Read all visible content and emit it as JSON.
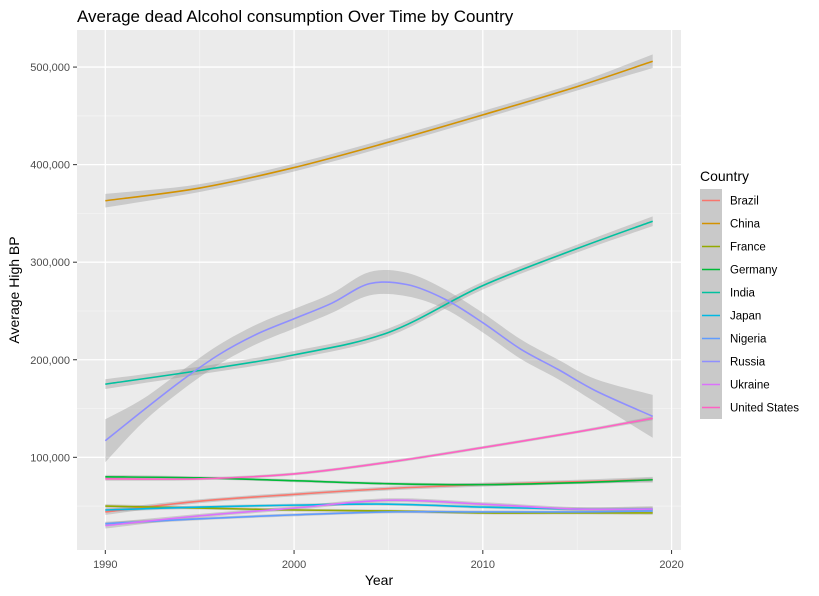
{
  "chart_data": {
    "type": "line",
    "title": "Average dead Alcohol consumption Over Time by Country",
    "xlabel": "Year",
    "ylabel": "Average High BP",
    "xlim": [
      1988.5,
      2020.5
    ],
    "ylim": [
      5000,
      538000
    ],
    "x_ticks": [
      1990,
      2000,
      2010,
      2020
    ],
    "x_tick_labels": [
      "1990",
      "2000",
      "2010",
      "2020"
    ],
    "y_ticks": [
      100000,
      200000,
      300000,
      400000,
      500000
    ],
    "y_tick_labels": [
      "100,000",
      "200,000",
      "300,000",
      "400,000",
      "500,000"
    ],
    "grid": true,
    "smoothed": true,
    "confidence_band": true,
    "legend": {
      "title": "Country",
      "position": "right"
    },
    "series": [
      {
        "name": "Brazil",
        "color": "#F8766D",
        "x": [
          1990,
          1995,
          2000,
          2005,
          2010,
          2015,
          2019
        ],
        "y": [
          44000,
          55000,
          62000,
          68000,
          72000,
          75000,
          77000
        ],
        "band": [
          3000,
          2000,
          2000,
          2000,
          2000,
          2000,
          3000
        ]
      },
      {
        "name": "China",
        "color": "#D39200",
        "x": [
          1990,
          1995,
          2000,
          2005,
          2010,
          2015,
          2019
        ],
        "y": [
          363000,
          376000,
          397000,
          423000,
          451000,
          480000,
          506000
        ],
        "band": [
          7000,
          4000,
          4000,
          4000,
          4000,
          4000,
          7000
        ]
      },
      {
        "name": "France",
        "color": "#93AA00",
        "x": [
          1990,
          1995,
          2000,
          2005,
          2010,
          2015,
          2019
        ],
        "y": [
          50000,
          48000,
          46000,
          45000,
          43000,
          43000,
          43000
        ],
        "band": [
          2000,
          1500,
          1500,
          1500,
          1500,
          1500,
          2000
        ]
      },
      {
        "name": "Germany",
        "color": "#00BA38",
        "x": [
          1990,
          1995,
          2000,
          2005,
          2010,
          2015,
          2019
        ],
        "y": [
          80000,
          79000,
          76000,
          73000,
          72000,
          74000,
          77000
        ],
        "band": [
          2000,
          1500,
          1500,
          1500,
          1500,
          1500,
          2000
        ]
      },
      {
        "name": "India",
        "color": "#00C19F",
        "x": [
          1990,
          1995,
          2000,
          2005,
          2010,
          2015,
          2019
        ],
        "y": [
          175000,
          189000,
          205000,
          228000,
          276000,
          314000,
          342000
        ],
        "band": [
          5000,
          4000,
          4000,
          4000,
          4000,
          4000,
          5000
        ]
      },
      {
        "name": "Japan",
        "color": "#00B9E3",
        "x": [
          1990,
          1995,
          2000,
          2005,
          2010,
          2015,
          2019
        ],
        "y": [
          46000,
          49000,
          51000,
          52000,
          49000,
          47000,
          47000
        ],
        "band": [
          2000,
          1500,
          1500,
          1500,
          1500,
          1500,
          2000
        ]
      },
      {
        "name": "Nigeria",
        "color": "#619CFF",
        "x": [
          1990,
          1995,
          2000,
          2005,
          2010,
          2015,
          2019
        ],
        "y": [
          32000,
          37000,
          41000,
          44000,
          44000,
          44000,
          45000
        ],
        "band": [
          2000,
          1500,
          1500,
          1500,
          1500,
          1500,
          2000
        ]
      },
      {
        "name": "Russia",
        "color": "#8F8FFF",
        "x": [
          1990,
          1992,
          1994,
          1996,
          1998,
          2000,
          2002,
          2004,
          2006,
          2008,
          2010,
          2012,
          2014,
          2016,
          2019
        ],
        "y": [
          117000,
          148000,
          178000,
          205000,
          226000,
          242000,
          258000,
          278000,
          277000,
          262000,
          238000,
          211000,
          190000,
          168000,
          142000
        ],
        "band": [
          22000,
          12000,
          10000,
          10000,
          10000,
          10000,
          10000,
          12000,
          12000,
          10000,
          10000,
          10000,
          10000,
          12000,
          22000
        ]
      },
      {
        "name": "Ukraine",
        "color": "#DB72FB",
        "x": [
          1990,
          1995,
          2000,
          2005,
          2010,
          2015,
          2019
        ],
        "y": [
          30000,
          40000,
          48000,
          56000,
          52000,
          47000,
          47000
        ],
        "band": [
          3000,
          2000,
          2000,
          2000,
          2000,
          2000,
          3000
        ]
      },
      {
        "name": "United States",
        "color": "#FF61C3",
        "x": [
          1990,
          1995,
          2000,
          2005,
          2010,
          2015,
          2019
        ],
        "y": [
          78000,
          78000,
          83000,
          95000,
          110000,
          126000,
          140000
        ],
        "band": [
          2000,
          1500,
          1500,
          1500,
          1500,
          1500,
          2000
        ]
      }
    ]
  }
}
